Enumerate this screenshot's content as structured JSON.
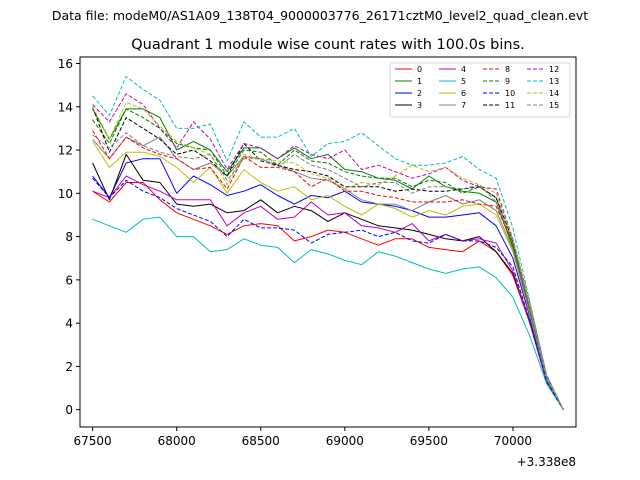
{
  "header": {
    "data_file": "Data file: modeM0/AS1A09_138T04_9000003776_26171cztM0_level2_quad_clean.evt"
  },
  "chart_data": {
    "type": "line",
    "title": "Quadrant 1 module wise count rates with 100.0s bins.",
    "xlabel": "",
    "ylabel": "",
    "x_offset_label": "+3.338e8",
    "xlim": [
      67425,
      70375
    ],
    "ylim": [
      -0.8,
      16.3
    ],
    "x_ticks": [
      67500,
      68000,
      68500,
      69000,
      69500,
      70000
    ],
    "x_tick_labels": [
      "67500",
      "68000",
      "68500",
      "69000",
      "69500",
      "70000"
    ],
    "y_ticks": [
      0,
      2,
      4,
      6,
      8,
      10,
      12,
      14,
      16
    ],
    "y_tick_labels": [
      "0",
      "2",
      "4",
      "6",
      "8",
      "10",
      "12",
      "14",
      "16"
    ],
    "grid": false,
    "legend_position": "top-right",
    "x": [
      67500,
      67600,
      67700,
      67800,
      67900,
      68000,
      68100,
      68200,
      68300,
      68400,
      68500,
      68600,
      68700,
      68800,
      68900,
      69000,
      69100,
      69200,
      69300,
      69400,
      69500,
      69600,
      69700,
      69800,
      69900,
      70000,
      70100,
      70200,
      70300
    ],
    "series": [
      {
        "name": "0",
        "color": "#ff0000",
        "dash": "solid",
        "values": [
          10.1,
          9.6,
          10.5,
          10.5,
          9.7,
          9.1,
          8.8,
          8.5,
          8.1,
          8.5,
          8.6,
          8.5,
          7.8,
          8.0,
          8.3,
          8.2,
          7.9,
          7.6,
          7.9,
          7.9,
          7.5,
          7.4,
          7.3,
          7.8,
          7.3,
          6.2,
          4.0,
          1.3,
          0.0
        ]
      },
      {
        "name": "1",
        "color": "#008000",
        "dash": "solid",
        "values": [
          13.9,
          12.5,
          13.9,
          13.9,
          13.5,
          12.0,
          12.4,
          12.0,
          11.0,
          12.1,
          12.1,
          11.6,
          12.1,
          11.6,
          11.8,
          11.1,
          11.0,
          10.7,
          10.6,
          10.2,
          10.8,
          10.3,
          10.1,
          10.0,
          9.6,
          7.5,
          4.5,
          1.5,
          0.0
        ]
      },
      {
        "name": "2",
        "color": "#0000ff",
        "dash": "solid",
        "values": [
          10.8,
          9.8,
          11.4,
          11.6,
          11.6,
          10.0,
          10.8,
          10.4,
          9.9,
          10.1,
          10.4,
          9.9,
          9.5,
          9.9,
          9.8,
          10.1,
          9.6,
          9.5,
          9.4,
          9.2,
          8.9,
          8.9,
          9.0,
          9.1,
          8.5,
          7.0,
          4.3,
          1.4,
          0.0
        ]
      },
      {
        "name": "3",
        "color": "#000000",
        "dash": "solid",
        "values": [
          11.4,
          9.7,
          11.8,
          10.6,
          10.5,
          9.5,
          9.4,
          9.5,
          9.1,
          9.2,
          9.7,
          9.1,
          9.4,
          9.2,
          8.7,
          9.1,
          8.8,
          8.5,
          8.4,
          8.3,
          8.1,
          7.9,
          7.8,
          8.0,
          7.3,
          6.3,
          4.1,
          1.3,
          0.0
        ]
      },
      {
        "name": "4",
        "color": "#bf00bf",
        "dash": "solid",
        "values": [
          10.1,
          9.8,
          10.8,
          10.4,
          10.1,
          9.7,
          9.7,
          9.7,
          8.5,
          9.1,
          9.4,
          8.8,
          8.9,
          9.6,
          9.0,
          9.1,
          8.5,
          8.4,
          8.2,
          8.6,
          7.8,
          8.1,
          7.8,
          7.9,
          7.7,
          6.4,
          4.0,
          1.3,
          0.0
        ]
      },
      {
        "name": "5",
        "color": "#00bfbf",
        "dash": "solid",
        "values": [
          8.8,
          8.5,
          8.2,
          8.8,
          8.9,
          8.0,
          8.0,
          7.3,
          7.4,
          7.9,
          7.6,
          7.5,
          6.8,
          7.4,
          7.2,
          6.9,
          6.7,
          7.3,
          7.1,
          6.8,
          6.5,
          6.3,
          6.5,
          6.6,
          6.1,
          5.2,
          3.4,
          1.2,
          0.0
        ]
      },
      {
        "name": "6",
        "color": "#bfbf00",
        "dash": "solid",
        "values": [
          12.4,
          11.2,
          11.9,
          11.9,
          11.7,
          11.2,
          10.5,
          11.2,
          10.0,
          11.1,
          10.5,
          10.1,
          10.3,
          9.7,
          9.9,
          9.4,
          9.0,
          9.5,
          9.3,
          8.9,
          9.2,
          9.0,
          9.4,
          9.5,
          9.0,
          7.3,
          4.4,
          1.4,
          0.0
        ]
      },
      {
        "name": "7",
        "color": "#808080",
        "dash": "solid",
        "values": [
          12.5,
          11.6,
          12.6,
          12.2,
          12.6,
          11.6,
          11.1,
          11.4,
          10.8,
          11.7,
          11.6,
          11.3,
          11.0,
          10.7,
          10.6,
          10.2,
          9.7,
          9.5,
          9.5,
          9.2,
          9.6,
          9.9,
          9.5,
          9.7,
          9.2,
          7.4,
          4.5,
          1.4,
          0.0
        ]
      },
      {
        "name": "8",
        "color": "#ff0000",
        "dash": "dashed",
        "values": [
          12.9,
          11.6,
          12.6,
          12.1,
          11.8,
          11.6,
          11.1,
          11.2,
          10.2,
          11.7,
          11.2,
          11.2,
          11.0,
          10.3,
          10.7,
          10.1,
          10.1,
          9.9,
          9.8,
          9.6,
          9.6,
          9.6,
          9.7,
          9.5,
          9.4,
          7.7,
          4.7,
          1.5,
          0.0
        ]
      },
      {
        "name": "9",
        "color": "#008000",
        "dash": "dashed",
        "values": [
          13.4,
          12.3,
          13.9,
          13.5,
          13.0,
          12.3,
          12.1,
          12.0,
          10.8,
          12.0,
          11.9,
          11.3,
          12.0,
          11.5,
          11.4,
          11.0,
          10.8,
          10.7,
          10.7,
          10.3,
          10.6,
          10.5,
          10.0,
          10.3,
          9.8,
          7.6,
          4.6,
          1.5,
          0.0
        ]
      },
      {
        "name": "10",
        "color": "#0000ff",
        "dash": "dashed",
        "values": [
          10.7,
          9.8,
          10.6,
          10.1,
          9.8,
          9.3,
          9.0,
          8.7,
          8.0,
          8.8,
          8.4,
          8.4,
          8.3,
          7.7,
          8.1,
          8.2,
          8.3,
          8.0,
          8.2,
          7.8,
          7.7,
          8.1,
          7.8,
          7.8,
          7.5,
          6.6,
          4.1,
          1.3,
          0.0
        ]
      },
      {
        "name": "11",
        "color": "#000000",
        "dash": "dashed",
        "values": [
          14.0,
          11.9,
          13.5,
          13.0,
          12.5,
          11.8,
          12.0,
          11.5,
          10.8,
          12.3,
          11.5,
          11.3,
          11.1,
          11.0,
          10.8,
          10.3,
          10.3,
          10.3,
          10.1,
          10.2,
          10.1,
          10.1,
          10.2,
          10.3,
          9.8,
          7.8,
          4.8,
          1.5,
          0.0
        ]
      },
      {
        "name": "12",
        "color": "#bf00bf",
        "dash": "dashed",
        "values": [
          14.1,
          13.3,
          14.6,
          14.1,
          13.0,
          12.1,
          13.3,
          12.5,
          11.1,
          12.3,
          12.1,
          11.6,
          12.2,
          11.8,
          11.6,
          12.0,
          11.1,
          11.3,
          11.0,
          10.7,
          10.9,
          11.2,
          10.6,
          10.3,
          10.2,
          7.9,
          4.9,
          1.6,
          0.0
        ]
      },
      {
        "name": "13",
        "color": "#00bfbf",
        "dash": "dashed",
        "values": [
          14.5,
          13.6,
          15.4,
          14.8,
          14.3,
          13.0,
          13.0,
          13.2,
          11.5,
          13.3,
          12.6,
          12.6,
          13.0,
          11.7,
          12.3,
          12.4,
          12.8,
          12.2,
          11.6,
          11.3,
          11.3,
          11.4,
          11.7,
          11.1,
          10.7,
          8.4,
          5.0,
          1.6,
          0.0
        ]
      },
      {
        "name": "14",
        "color": "#bfbf00",
        "dash": "dashed",
        "values": [
          14.0,
          12.5,
          14.2,
          13.9,
          13.1,
          12.4,
          12.1,
          11.8,
          10.4,
          11.8,
          11.6,
          11.5,
          11.4,
          10.9,
          10.7,
          10.2,
          10.5,
          10.4,
          10.8,
          11.3,
          11.0,
          11.2,
          10.7,
          10.4,
          10.0,
          7.9,
          4.8,
          1.5,
          0.0
        ]
      },
      {
        "name": "15",
        "color": "#808080",
        "dash": "dashed",
        "values": [
          12.7,
          12.1,
          12.8,
          12.2,
          11.9,
          11.7,
          11.6,
          11.8,
          10.6,
          11.6,
          11.6,
          11.2,
          11.8,
          11.3,
          11.1,
          10.7,
          10.3,
          10.5,
          10.5,
          10.0,
          10.3,
          10.3,
          10.2,
          10.4,
          9.6,
          7.8,
          4.7,
          1.5,
          0.0
        ]
      }
    ]
  }
}
